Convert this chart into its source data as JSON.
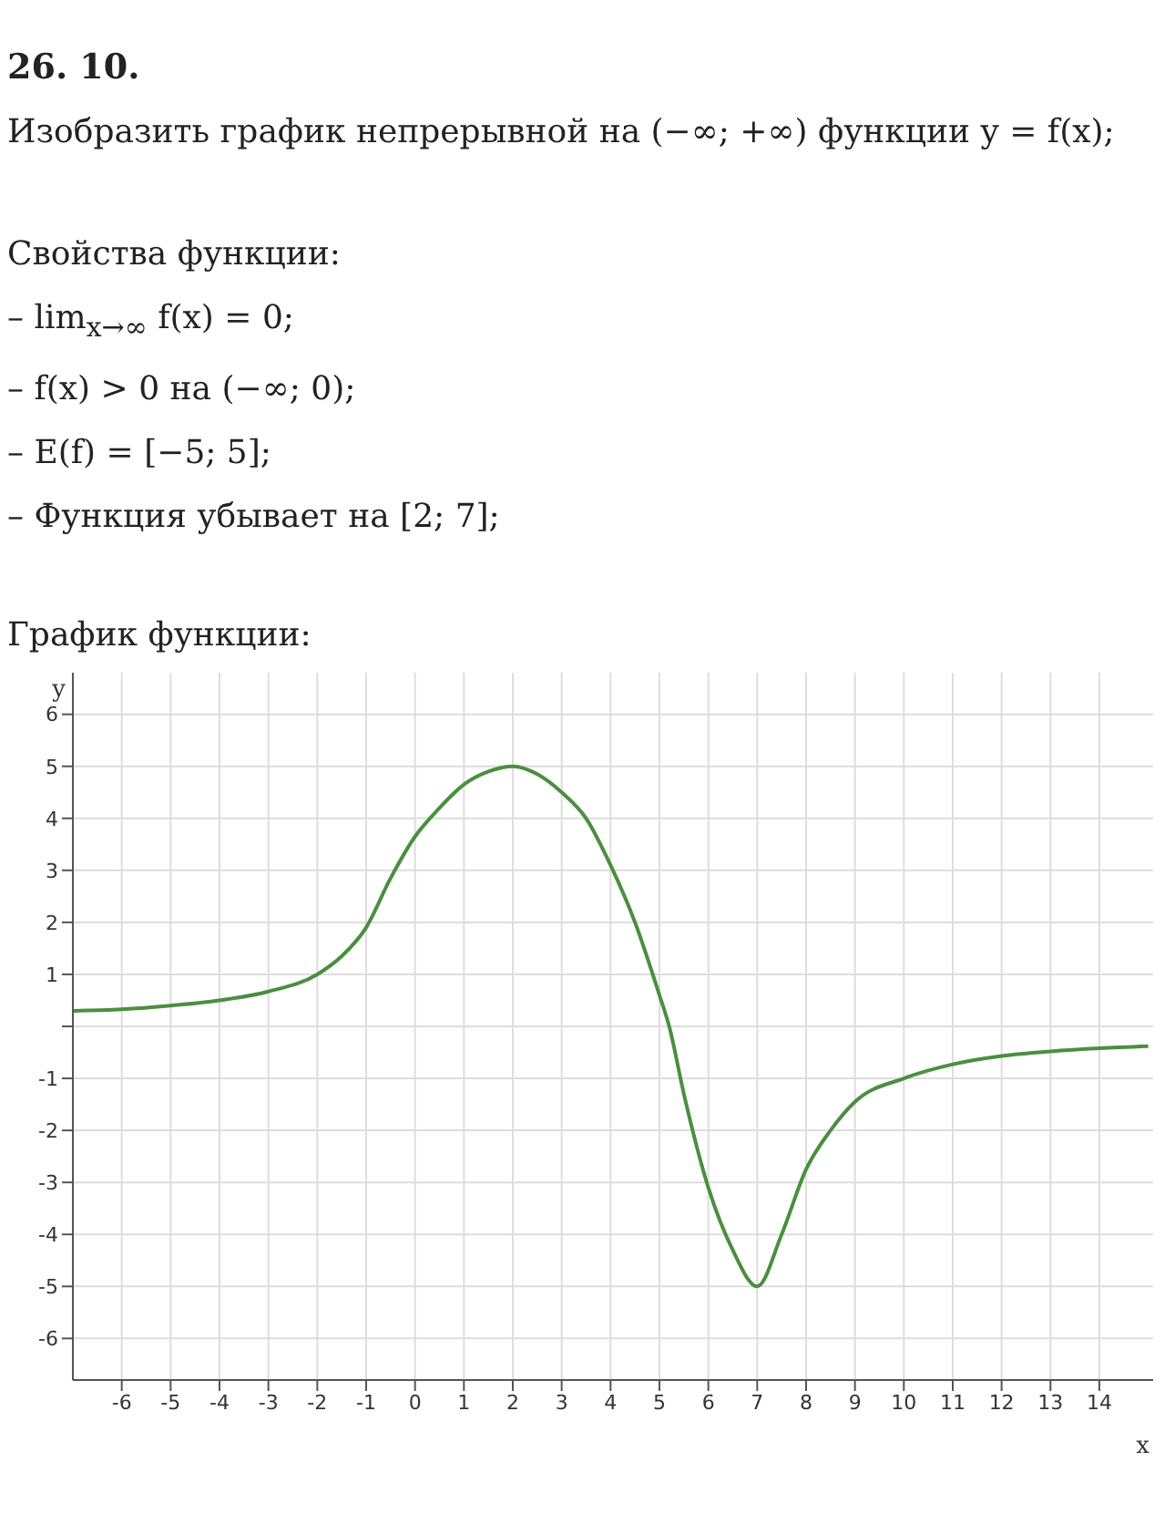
{
  "chart_data": {
    "type": "line",
    "title": "26. 10.",
    "annotations": [
      "Изобразить график непрерывной на (−∞; +∞) функции y = f(x);",
      "Свойства функции:",
      "– lim$_{x→∞}$ f(x) = 0;",
      "– f(x) > 0 на (−∞; 0);",
      "– E(f) = [−5; 5];",
      "– Функция убывает на [2; 7];",
      "График функции:"
    ],
    "xlabel": "x",
    "ylabel": "y",
    "x": [
      -7,
      -6,
      -5,
      -4,
      -3,
      -2,
      -1.5,
      -1,
      -0.5,
      0,
      0.5,
      1,
      1.5,
      2,
      2.5,
      3,
      3.5,
      4,
      4.5,
      5,
      5.2,
      5.5,
      6,
      6.5,
      7,
      7.5,
      8,
      8.5,
      9,
      10,
      11,
      12,
      13,
      14,
      15
    ],
    "series": [
      {
        "color": "#4a8f3f",
        "values": [
          0.3,
          0.33,
          0.4,
          0.5,
          0.67,
          1.0,
          1.35,
          1.9,
          2.85,
          3.65,
          4.2,
          4.65,
          4.9,
          5,
          4.85,
          4.5,
          4.0,
          3.1,
          2.0,
          0.6,
          0,
          -1.3,
          -3.1,
          -4.3,
          -5,
          -4.0,
          -2.75,
          -2.0,
          -1.45,
          -1.0,
          -0.73,
          -0.57,
          -0.48,
          -0.42,
          -0.38
        ]
      }
    ],
    "xlim": [
      -7,
      15.1
    ],
    "ylim": [
      -6.8,
      6.8
    ],
    "xticks": [
      -6,
      -5,
      -4,
      -3,
      -2,
      -1,
      0,
      1,
      2,
      3,
      4,
      5,
      6,
      7,
      8,
      9,
      10,
      11,
      12,
      13,
      14
    ],
    "yticks": [
      -6,
      -5,
      -4,
      -3,
      -2,
      -1,
      {
        "value": 0,
        "label": null
      },
      1,
      2,
      3,
      4,
      5,
      6
    ],
    "grid": true,
    "marker": "none",
    "line_style": "solid"
  }
}
